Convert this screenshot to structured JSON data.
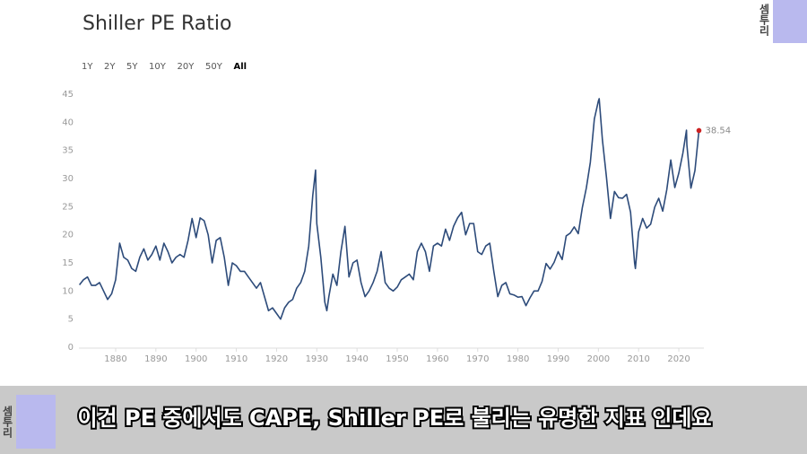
{
  "chart_data": {
    "type": "line",
    "title": "Shiller PE Ratio",
    "x": [
      1871,
      1872,
      1873,
      1874,
      1875,
      1876,
      1877,
      1878,
      1879,
      1880,
      1881,
      1882,
      1883,
      1884,
      1885,
      1886,
      1887,
      1888,
      1889,
      1890,
      1891,
      1892,
      1893,
      1894,
      1895,
      1896,
      1897,
      1898,
      1899,
      1900,
      1901,
      1902,
      1903,
      1904,
      1905,
      1906,
      1907,
      1908,
      1909,
      1910,
      1911,
      1912,
      1913,
      1914,
      1915,
      1916,
      1917,
      1918,
      1919,
      1920,
      1921,
      1922,
      1923,
      1924,
      1925,
      1926,
      1927,
      1928,
      1929,
      1929.7,
      1930,
      1931,
      1932,
      1932.5,
      1933,
      1934,
      1935,
      1936,
      1937,
      1938,
      1939,
      1940,
      1941,
      1942,
      1943,
      1944,
      1945,
      1946,
      1947,
      1948,
      1949,
      1950,
      1951,
      1952,
      1953,
      1954,
      1955,
      1956,
      1957,
      1958,
      1959,
      1960,
      1961,
      1962,
      1963,
      1964,
      1965,
      1966,
      1967,
      1968,
      1969,
      1970,
      1971,
      1972,
      1973,
      1974,
      1975,
      1976,
      1977,
      1978,
      1979,
      1980,
      1981,
      1982,
      1983,
      1984,
      1985,
      1986,
      1987,
      1988,
      1989,
      1990,
      1991,
      1992,
      1993,
      1994,
      1995,
      1996,
      1997,
      1998,
      1999,
      2000,
      2000.2,
      2001,
      2002,
      2003,
      2004,
      2005,
      2006,
      2007,
      2008,
      2009,
      2009.2,
      2010,
      2011,
      2012,
      2013,
      2014,
      2015,
      2016,
      2017,
      2018,
      2019,
      2020,
      2021,
      2021.9,
      2022,
      2023,
      2024,
      2025
    ],
    "series": [
      {
        "name": "Shiller PE Ratio",
        "color": "#2d4b7a",
        "values": [
          11.1,
          12,
          12.5,
          11,
          11,
          11.5,
          10,
          8.5,
          9.5,
          12,
          18.5,
          16,
          15.5,
          14,
          13.5,
          16,
          17.5,
          15.5,
          16.5,
          18,
          15.5,
          18.5,
          17,
          15,
          16,
          16.5,
          16,
          19,
          22.9,
          19.5,
          23,
          22.5,
          20,
          15,
          19,
          19.5,
          16,
          11,
          15,
          14.5,
          13.5,
          13.5,
          12.5,
          11.5,
          10.5,
          11.5,
          9,
          6.5,
          7,
          6,
          5,
          7,
          8,
          8.5,
          10.5,
          11.5,
          13.5,
          18,
          27,
          31.5,
          22,
          16,
          8,
          6.5,
          9,
          13,
          11,
          17,
          21.5,
          12.5,
          15,
          15.5,
          11.5,
          9,
          10,
          11.5,
          13.5,
          17,
          11.5,
          10.5,
          10,
          10.7,
          12,
          12.5,
          13,
          12,
          17,
          18.5,
          17,
          13.5,
          18,
          18.5,
          18,
          21,
          19,
          21.5,
          23,
          24,
          20,
          22,
          22,
          17,
          16.5,
          18,
          18.5,
          13.5,
          9,
          11,
          11.5,
          9.5,
          9.3,
          8.9,
          9,
          7.4,
          8.8,
          10,
          10,
          11.7,
          14.9,
          13.9,
          15.1,
          17,
          15.6,
          19.8,
          20.3,
          21.4,
          20.2,
          24.8,
          28.3,
          32.9,
          40.6,
          43.8,
          44.2,
          36.9,
          30.3,
          22.9,
          27.7,
          26.6,
          26.5,
          27.2,
          24,
          15,
          14,
          20.5,
          22.9,
          21.2,
          21.9,
          24.9,
          26.5,
          24.2,
          28,
          33.3,
          28.4,
          31,
          34.5,
          38.6,
          36,
          28.3,
          31.4,
          38.54
        ]
      }
    ],
    "xlim": [
      1871,
      2025
    ],
    "xticks": [
      1880,
      1890,
      1900,
      1910,
      1920,
      1930,
      1940,
      1950,
      1960,
      1970,
      1980,
      1990,
      2000,
      2010,
      2020
    ],
    "ylim": [
      0,
      45
    ],
    "yticks": [
      0,
      5,
      10,
      15,
      20,
      25,
      30,
      35,
      40,
      45
    ],
    "grid": false,
    "end_marker_color": "#cc2222"
  },
  "range_buttons": [
    "1Y",
    "2Y",
    "5Y",
    "10Y",
    "20Y",
    "50Y",
    "All"
  ],
  "subtitle": "이건 PE 중에서도 CAPE, Shiller PE로 불리는 유명한 지표 인데요",
  "logos": [
    "셈투리",
    "셈투리"
  ]
}
